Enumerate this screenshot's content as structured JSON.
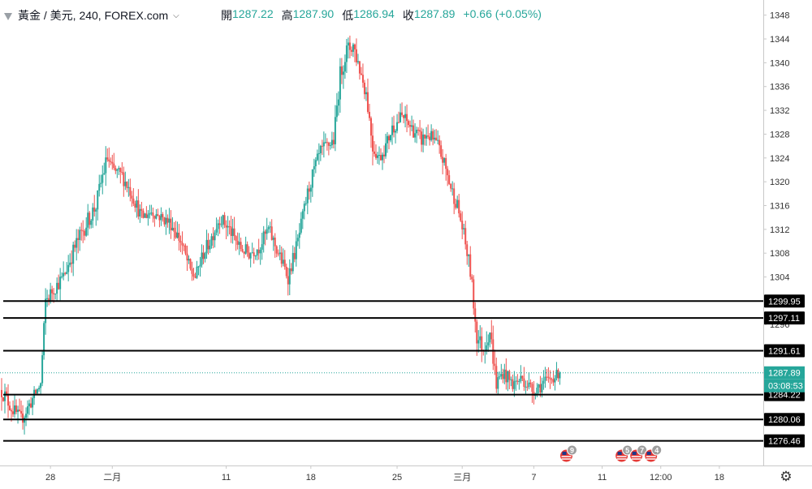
{
  "header": {
    "symbol": "黃金 / 美元, 240, FOREX.com",
    "caret": "⌵",
    "ohlc": [
      {
        "key": "開",
        "value": "1287.22"
      },
      {
        "key": "高",
        "value": "1287.90"
      },
      {
        "key": "低",
        "value": "1286.94"
      },
      {
        "key": "收",
        "value": "1287.89"
      },
      {
        "key": "",
        "value": "+0.66 (+0.05%)"
      }
    ]
  },
  "colors": {
    "up": "#26a69a",
    "down": "#ef5350",
    "line": "#000000",
    "price_tag": "#26a69a",
    "axis_text": "#333333",
    "grid_axis": "#c8c8c8"
  },
  "chart_data": {
    "type": "candlestick",
    "ylim": [
      1273,
      1350
    ],
    "y_ticks": [
      1348,
      1344,
      1340,
      1336,
      1332,
      1328,
      1324,
      1320,
      1316,
      1312,
      1308,
      1304,
      1300,
      1296
    ],
    "x_ticks": [
      {
        "label": "28",
        "t": 30
      },
      {
        "label": "二月",
        "t": 68
      },
      {
        "label": "11",
        "t": 138
      },
      {
        "label": "18",
        "t": 190
      },
      {
        "label": "25",
        "t": 243
      },
      {
        "label": "三月",
        "t": 283
      },
      {
        "label": "7",
        "t": 327
      },
      {
        "label": "11",
        "t": 369
      },
      {
        "label": "12:00",
        "t": 405
      },
      {
        "label": "18",
        "t": 441
      }
    ],
    "t_range": [
      0,
      467
    ],
    "horizontal_lines": [
      1299.95,
      1297.11,
      1291.61,
      1284.22,
      1280.06,
      1276.46
    ],
    "price_labels": [
      "1299.95",
      "1297.11",
      "1291.61",
      "1284.22",
      "1280.06",
      "1276.46"
    ],
    "current_price": {
      "value": 1287.89,
      "label": "1287.89",
      "countdown": "03:08:53"
    },
    "events": [
      {
        "t": 347,
        "count": "9",
        "flags": 1
      },
      {
        "t": 381,
        "count": "5",
        "flags": 1
      },
      {
        "t": 390,
        "count": "7",
        "flags": 1
      },
      {
        "t": 399,
        "count": "4",
        "flags": 1
      }
    ],
    "anchors": [
      [
        0,
        1285,
        3
      ],
      [
        6,
        1282,
        2.5
      ],
      [
        12,
        1280,
        2.5
      ],
      [
        18,
        1283,
        2.5
      ],
      [
        24,
        1286,
        2
      ],
      [
        27,
        1300,
        2.5
      ],
      [
        32,
        1302,
        2.5
      ],
      [
        38,
        1304,
        2.5
      ],
      [
        45,
        1309,
        3
      ],
      [
        52,
        1313,
        3
      ],
      [
        58,
        1316,
        3
      ],
      [
        62,
        1321,
        3
      ],
      [
        65,
        1324,
        3
      ],
      [
        68,
        1322,
        2.5
      ],
      [
        74,
        1321,
        2.5
      ],
      [
        80,
        1318,
        2.5
      ],
      [
        86,
        1314,
        2.5
      ],
      [
        92,
        1315,
        2
      ],
      [
        98,
        1314,
        2
      ],
      [
        104,
        1313,
        2.5
      ],
      [
        110,
        1310,
        2.5
      ],
      [
        116,
        1305,
        2.5
      ],
      [
        119,
        1304,
        2
      ],
      [
        124,
        1308,
        2.5
      ],
      [
        128,
        1310,
        2.5
      ],
      [
        134,
        1314,
        2.5
      ],
      [
        140,
        1312,
        2.5
      ],
      [
        146,
        1309,
        2.5
      ],
      [
        152,
        1308,
        2.5
      ],
      [
        158,
        1309,
        2.5
      ],
      [
        164,
        1312,
        2.5
      ],
      [
        170,
        1308,
        2.5
      ],
      [
        176,
        1304,
        2.5
      ],
      [
        182,
        1310,
        2.5
      ],
      [
        188,
        1318,
        2.5
      ],
      [
        192,
        1322,
        2.5
      ],
      [
        196,
        1325,
        2.5
      ],
      [
        200,
        1326,
        2.5
      ],
      [
        204,
        1327,
        2.5
      ],
      [
        208,
        1338,
        3
      ],
      [
        212,
        1342,
        3
      ],
      [
        216,
        1343,
        3
      ],
      [
        220,
        1339,
        3
      ],
      [
        224,
        1335,
        3
      ],
      [
        228,
        1326,
        3
      ],
      [
        232,
        1324,
        2.5
      ],
      [
        236,
        1326,
        2.5
      ],
      [
        240,
        1329,
        2.5
      ],
      [
        246,
        1331,
        2.5
      ],
      [
        252,
        1329,
        2.5
      ],
      [
        258,
        1327,
        2.5
      ],
      [
        262,
        1328,
        2.5
      ],
      [
        268,
        1326,
        2.5
      ],
      [
        272,
        1323,
        2.5
      ],
      [
        276,
        1319,
        2.5
      ],
      [
        280,
        1316,
        2.5
      ],
      [
        284,
        1311,
        2.5
      ],
      [
        288,
        1305,
        3
      ],
      [
        292,
        1294,
        3
      ],
      [
        296,
        1292,
        3
      ],
      [
        300,
        1295,
        3
      ],
      [
        304,
        1286,
        3
      ],
      [
        308,
        1288,
        2.5
      ],
      [
        314,
        1286,
        2.5
      ],
      [
        320,
        1287,
        2.5
      ],
      [
        326,
        1285,
        2.5
      ],
      [
        332,
        1286,
        2.5
      ],
      [
        338,
        1287,
        2
      ],
      [
        343,
        1287.9,
        1.5
      ]
    ]
  }
}
